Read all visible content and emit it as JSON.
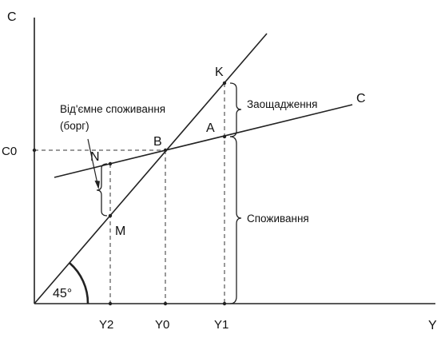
{
  "axes": {
    "y_label": "C",
    "x_label": "Y"
  },
  "ticks": {
    "c0": "C0",
    "y2": "Y2",
    "y0": "Y0",
    "y1": "Y1"
  },
  "angle_label": "45°",
  "points": {
    "k": "K",
    "a": "A",
    "b": "B",
    "n": "N",
    "m": "M",
    "c_line": "C"
  },
  "annotations": {
    "negative_line1": "Від'ємне споживання",
    "negative_line2": "(борг)",
    "savings": "Заощадження",
    "consumption": "Споживання"
  },
  "colors": {
    "line": "#222222",
    "text": "#111111"
  }
}
